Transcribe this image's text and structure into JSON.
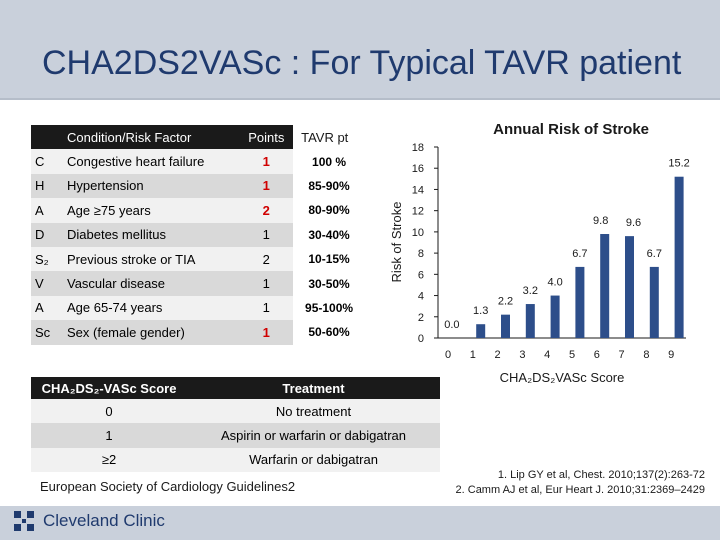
{
  "slide": {
    "title": "CHA2DS2VASc : For Typical TAVR patient"
  },
  "risk_table": {
    "headers": {
      "condition": "Condition/Risk Factor",
      "points": "Points",
      "tavr": "TAVR pt"
    },
    "rows": [
      {
        "letter": "C",
        "condition": "Congestive heart failure",
        "points": "1",
        "tavr": "100 %",
        "highlight": true
      },
      {
        "letter": "H",
        "condition": "Hypertension",
        "points": "1",
        "tavr": "85-90%",
        "highlight": true
      },
      {
        "letter": "A",
        "condition": "Age ≥75 years",
        "points": "2",
        "tavr": "80-90%",
        "highlight": true
      },
      {
        "letter": "D",
        "condition": "Diabetes mellitus",
        "points": "1",
        "tavr": "30-40%",
        "highlight": false
      },
      {
        "letter": "S₂",
        "condition": "Previous stroke or TIA",
        "points": "2",
        "tavr": "10-15%",
        "highlight": false
      },
      {
        "letter": "V",
        "condition": "Vascular disease",
        "points": "1",
        "tavr": "30-50%",
        "highlight": false
      },
      {
        "letter": "A",
        "condition": "Age 65-74 years",
        "points": "1",
        "tavr": "95-100%",
        "highlight": false
      },
      {
        "letter": "Sc",
        "condition": "Sex (female gender)",
        "points": "1",
        "tavr": "50-60%",
        "highlight": true
      }
    ]
  },
  "treatment_table": {
    "headers": {
      "score": "CHA₂DS₂-VASc Score",
      "treatment": "Treatment"
    },
    "rows": [
      {
        "score": "0",
        "treatment": "No treatment"
      },
      {
        "score": "1",
        "treatment": "Aspirin or warfarin or dabigatran"
      },
      {
        "score": "≥2",
        "treatment": "Warfarin or dabigatran"
      }
    ]
  },
  "guidelines": "European Society of Cardiology Guidelines2",
  "references": [
    "1. Lip GY et al, Chest. 2010;137(2):263-72",
    "2. Camm AJ et al, Eur Heart J. 2010;31:2369–2429"
  ],
  "footer": {
    "logo_text": "Cleveland Clinic"
  },
  "colors": {
    "bar": "#2d4e8a",
    "highlight_points": "#d00000",
    "header_band": "#c9d0db",
    "title": "#1f3a6e"
  },
  "chart_data": {
    "type": "bar",
    "title": "Annual Risk of Stroke",
    "xlabel": "CHA₂DS₂VASc Score",
    "ylabel": "Risk of Stroke",
    "categories": [
      "0",
      "1",
      "2",
      "3",
      "4",
      "5",
      "6",
      "7",
      "8",
      "9"
    ],
    "values": [
      0.0,
      1.3,
      2.2,
      3.2,
      4.0,
      6.7,
      9.8,
      9.6,
      6.7,
      15.2
    ],
    "value_labels": [
      "0.0",
      "1.3",
      "2.2",
      "3.2",
      "4.0",
      "6.7",
      "9.8",
      "9.6",
      "6.7",
      "15.2"
    ],
    "yticks": [
      "0",
      "2",
      "4",
      "6",
      "8",
      "10",
      "12",
      "14",
      "16",
      "18"
    ],
    "ylim": [
      0,
      18
    ],
    "grid": false,
    "legend": "none"
  }
}
